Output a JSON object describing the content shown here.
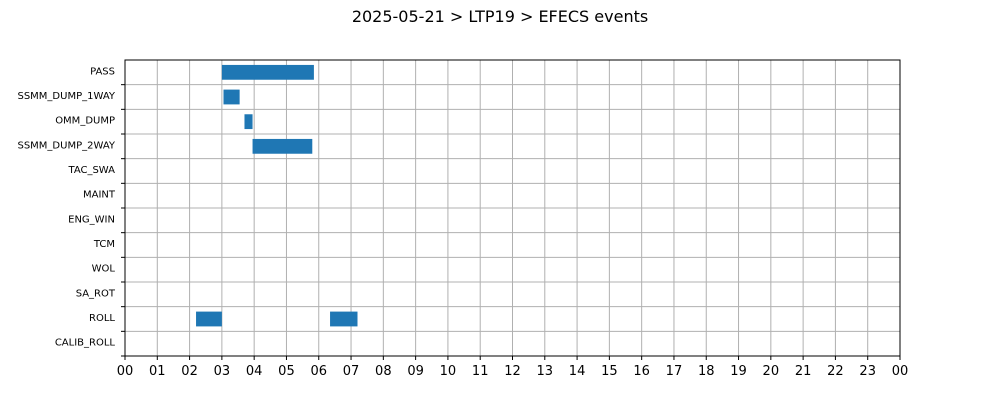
{
  "chart_data": {
    "type": "bar",
    "orientation": "horizontal-gantt",
    "title": "2025-05-21 > LTP19 > EFECS events",
    "xlabel": "",
    "ylabel": "",
    "grid": true,
    "bar_color": "#1f77b4",
    "x_unit": "hour",
    "xlim": [
      0,
      24
    ],
    "x_tick_labels": [
      "00",
      "01",
      "02",
      "03",
      "04",
      "05",
      "06",
      "07",
      "08",
      "09",
      "10",
      "11",
      "12",
      "13",
      "14",
      "15",
      "16",
      "17",
      "18",
      "19",
      "20",
      "21",
      "22",
      "23",
      "00"
    ],
    "categories": [
      "PASS",
      "SSMM_DUMP_1WAY",
      "OMM_DUMP",
      "SSMM_DUMP_2WAY",
      "TAC_SWA",
      "MAINT",
      "ENG_WIN",
      "TCM",
      "WOL",
      "SA_ROT",
      "ROLL",
      "CALIB_ROLL"
    ],
    "events": [
      {
        "category": "PASS",
        "start": 3.0,
        "end": 5.85
      },
      {
        "category": "SSMM_DUMP_1WAY",
        "start": 3.05,
        "end": 3.55
      },
      {
        "category": "OMM_DUMP",
        "start": 3.7,
        "end": 3.95
      },
      {
        "category": "SSMM_DUMP_2WAY",
        "start": 3.95,
        "end": 5.8
      },
      {
        "category": "ROLL",
        "start": 2.2,
        "end": 3.0
      },
      {
        "category": "ROLL",
        "start": 6.35,
        "end": 7.2
      }
    ]
  }
}
